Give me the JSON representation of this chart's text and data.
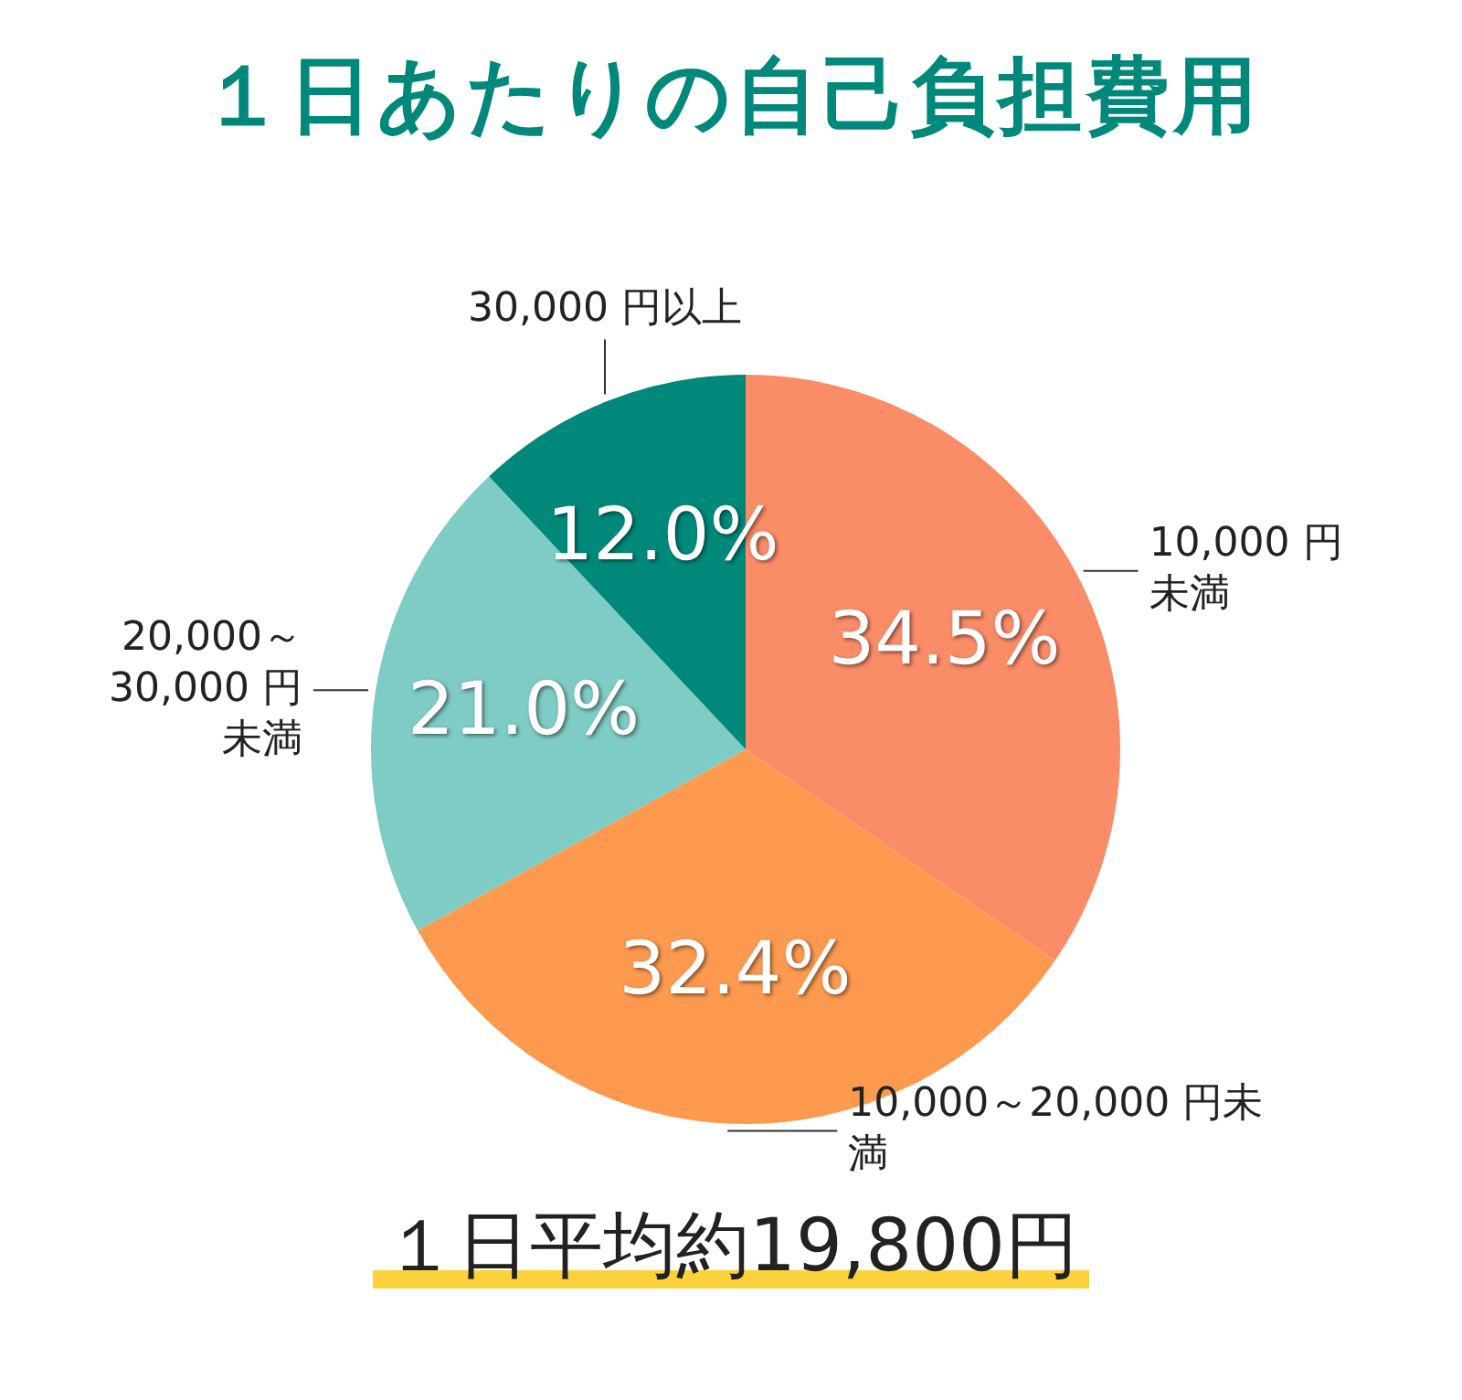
{
  "chart_data": {
    "type": "pie",
    "title": "１日あたりの自己負担費用",
    "categories": [
      "10,000 円未満",
      "10,000～20,000 円未満",
      "20,000～30,000 円未満",
      "30,000 円以上"
    ],
    "values": [
      34.5,
      32.4,
      21.0,
      12.0
    ],
    "colors": [
      "#fb8c68",
      "#fe9a4f",
      "#7fcbc5",
      "#00897a"
    ],
    "value_labels": [
      "34.5%",
      "32.4%",
      "21.0%",
      "12.0%"
    ],
    "annotations": [
      "１日平均約19,800円"
    ],
    "legend": false
  }
}
